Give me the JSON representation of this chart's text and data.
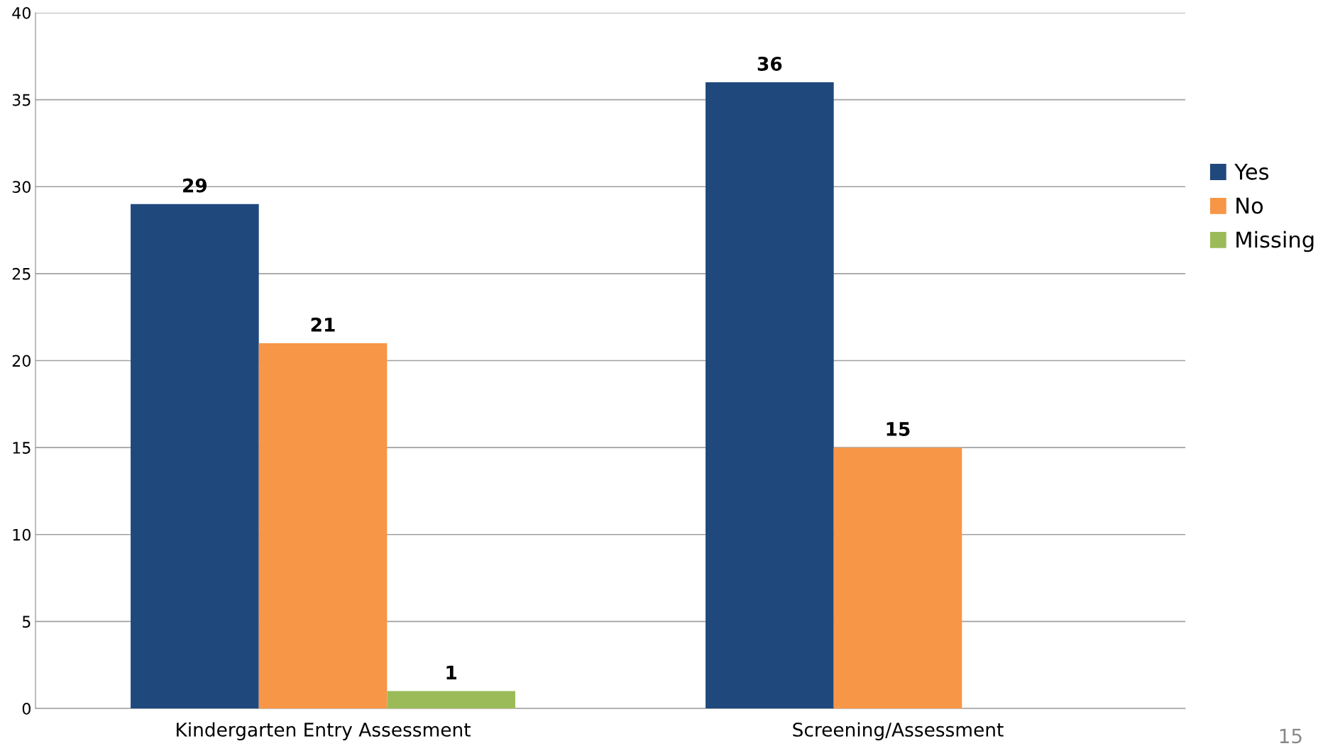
{
  "chart_data": {
    "type": "bar",
    "categories": [
      "Kindergarten Entry Assessment",
      "Screening/Assessment"
    ],
    "series": [
      {
        "name": "Yes",
        "color": "#1f497d",
        "values": [
          29,
          36
        ]
      },
      {
        "name": "No",
        "color": "#f79646",
        "values": [
          21,
          15
        ]
      },
      {
        "name": "Missing",
        "color": "#9bbb59",
        "values": [
          1,
          null
        ]
      }
    ],
    "ylim": [
      0,
      40
    ],
    "yticks": [
      0,
      5,
      10,
      15,
      20,
      25,
      30,
      35,
      40
    ],
    "grid": "y",
    "legend": "right",
    "data_labels": true,
    "annotations": [
      "15"
    ]
  }
}
